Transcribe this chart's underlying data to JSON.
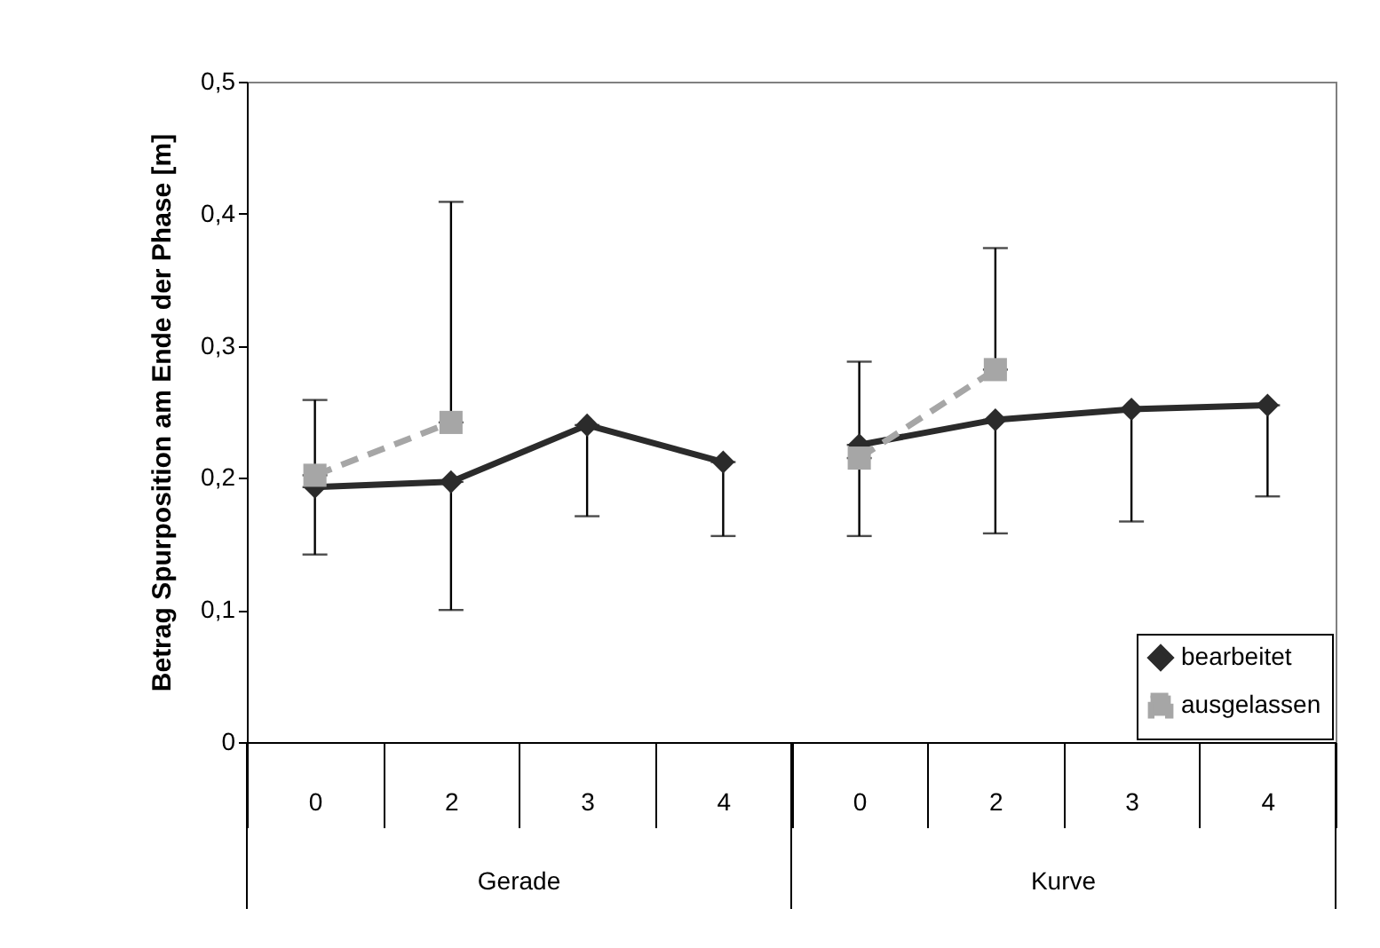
{
  "chart_data": {
    "type": "line",
    "ylabel": "Betrag Spurposition am Ende der Phase [m]",
    "categories": [
      "0",
      "2",
      "3",
      "4",
      "0",
      "2",
      "3",
      "4"
    ],
    "series": [
      {
        "name": "bearbeitet",
        "color": "#2b2b2b",
        "marker": "diamond",
        "line_style": "solid",
        "values": [
          0.193,
          0.197,
          0.24,
          0.212,
          null,
          null,
          null,
          null
        ],
        "errors": [
          [
            0.142,
            0.193
          ],
          [
            0.1,
            0.197
          ],
          [
            0.171,
            0.24
          ],
          [
            0.156,
            0.212
          ],
          null,
          null,
          null,
          null
        ]
      },
      {
        "name": "ausgelassen",
        "color": "#a6a6a6",
        "marker": "square",
        "line_style": "dashed",
        "values": [
          0.202,
          0.242,
          null,
          null,
          null,
          null,
          null,
          null
        ],
        "errors": [
          [
            0.202,
            0.259
          ],
          [
            0.242,
            0.409
          ],
          null,
          null,
          null,
          null,
          null,
          null
        ]
      },
      {
        "color": "#2b2b2b",
        "marker": "diamond",
        "line_style": "solid",
        "values": [
          null,
          null,
          null,
          null,
          0.225,
          0.244,
          0.252,
          0.255
        ],
        "errors": [
          null,
          null,
          null,
          null,
          [
            0.156,
            0.225
          ],
          [
            0.158,
            0.244
          ],
          [
            0.167,
            0.252
          ],
          [
            0.186,
            0.255
          ]
        ]
      },
      {
        "color": "#a6a6a6",
        "marker": "square",
        "line_style": "dashed",
        "values": [
          null,
          null,
          null,
          null,
          0.215,
          0.282,
          null,
          null
        ],
        "errors": [
          null,
          null,
          null,
          null,
          [
            0.215,
            0.288
          ],
          [
            0.282,
            0.374
          ],
          null,
          null
        ]
      }
    ],
    "ylim": [
      0,
      0.5
    ],
    "yticks": [
      {
        "value": 0,
        "label": "0"
      },
      {
        "value": 0.1,
        "label": "0,1"
      },
      {
        "value": 0.2,
        "label": "0,2"
      },
      {
        "value": 0.3,
        "label": "0,3"
      },
      {
        "value": 0.4,
        "label": "0,4"
      },
      {
        "value": 0.5,
        "label": "0,5"
      }
    ],
    "annotations": [
      "Gerade",
      "Kurve"
    ],
    "legend": "bottom right",
    "grid": false
  }
}
